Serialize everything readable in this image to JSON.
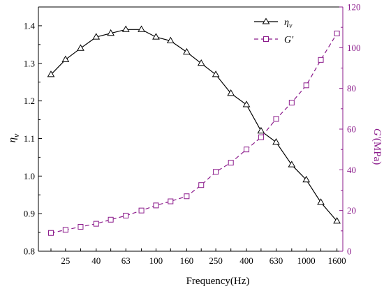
{
  "chart_data": {
    "type": "line",
    "xlabel": "Frequency(Hz)",
    "x_tick_labels": [
      "25",
      "40",
      "63",
      "100",
      "160",
      "250",
      "400",
      "630",
      "1000",
      "1600"
    ],
    "x": [
      20,
      25,
      31.5,
      40,
      50,
      63,
      80,
      100,
      125,
      160,
      200,
      250,
      315,
      400,
      500,
      630,
      800,
      1000,
      1250,
      1600
    ],
    "y_left": {
      "label_main": "η",
      "label_sub": "v",
      "ylim": [
        0.8,
        1.45
      ],
      "ticks": [
        "0.8",
        "0.9",
        "1.0",
        "1.1",
        "1.2",
        "1.3",
        "1.4"
      ]
    },
    "y_right": {
      "label_main": "G'",
      "label_unit": "(MPa)",
      "ylim": [
        0,
        120
      ],
      "ticks": [
        "0",
        "20",
        "40",
        "60",
        "80",
        "100",
        "120"
      ],
      "color": "#8B1A8B"
    },
    "series": [
      {
        "name_main": "η",
        "name_sub": "v",
        "axis": "left",
        "color": "#000000",
        "marker": "triangle",
        "line": "solid",
        "values": [
          1.27,
          1.31,
          1.34,
          1.37,
          1.38,
          1.39,
          1.39,
          1.37,
          1.36,
          1.33,
          1.3,
          1.27,
          1.22,
          1.19,
          1.12,
          1.09,
          1.03,
          0.99,
          0.93,
          0.88
        ]
      },
      {
        "name_main": "G'",
        "axis": "right",
        "color": "#8B1A8B",
        "marker": "square",
        "line": "dashed",
        "values": [
          9,
          10.5,
          12,
          13.5,
          15.5,
          17.5,
          20,
          22.5,
          24.5,
          27,
          32.5,
          39,
          43.5,
          50,
          56,
          65,
          73,
          81.5,
          94,
          107
        ]
      }
    ]
  }
}
